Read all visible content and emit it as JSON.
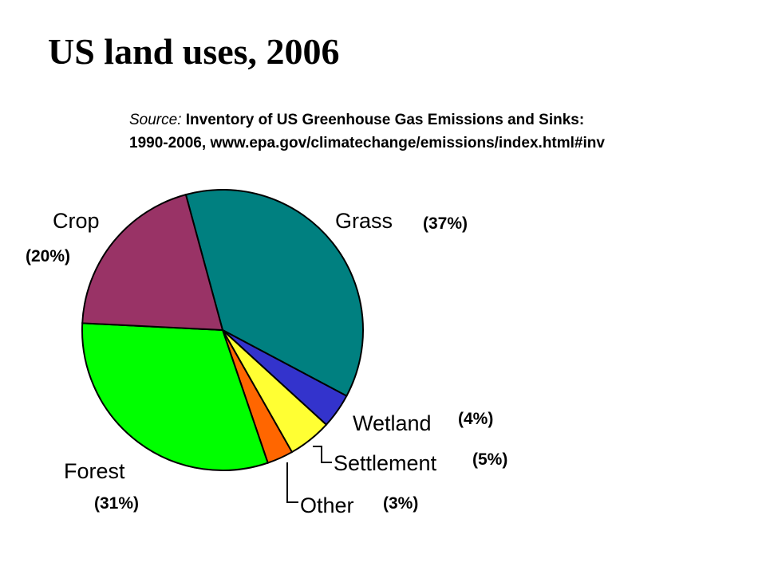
{
  "title": "US land uses, 2006",
  "source": {
    "prefix": "Source:",
    "line1_rest": "Inventory of US Greenhouse Gas  Emissions and Sinks:",
    "line2_a": "1990-2006,",
    "line2_b": "www.epa.gov/climatechange/emissions/index.html#inv"
  },
  "chart_data": {
    "type": "pie",
    "title": "US land uses, 2006",
    "slices": [
      {
        "label": "Grass",
        "pct_label": "(37%)",
        "value": 37,
        "color": "#008080"
      },
      {
        "label": "Wetland",
        "pct_label": "(4%)",
        "value": 4,
        "color": "#3333cc"
      },
      {
        "label": "Settlement",
        "pct_label": "(5%)",
        "value": 5,
        "color": "#ffff33"
      },
      {
        "label": "Other",
        "pct_label": "(3%)",
        "value": 3,
        "color": "#ff6600"
      },
      {
        "label": "Forest",
        "pct_label": "(31%)",
        "value": 31,
        "color": "#00ff00"
      },
      {
        "label": "Crop",
        "pct_label": "(20%)",
        "value": 20,
        "color": "#993366"
      }
    ]
  }
}
